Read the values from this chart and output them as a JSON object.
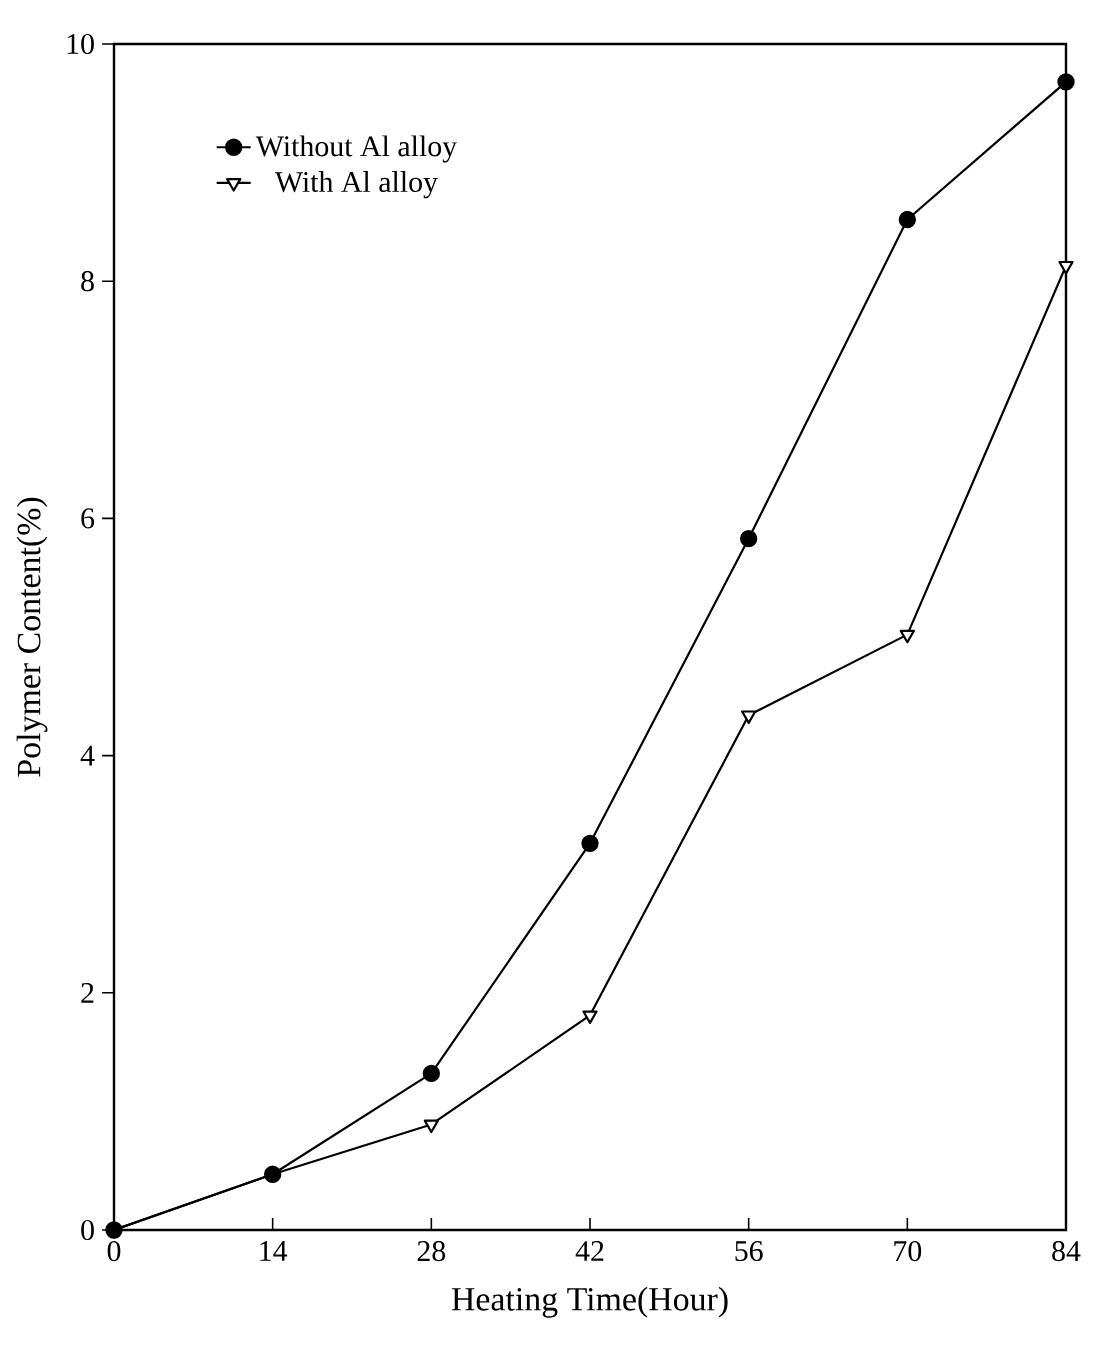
{
  "chart_data": {
    "type": "line",
    "xlabel": "Heating Time(Hour)",
    "ylabel": "Polymer Content(%)",
    "x": [
      0,
      14,
      28,
      42,
      56,
      70,
      84
    ],
    "series": [
      {
        "name": "Without Al alloy",
        "color": "#000000",
        "marker": "circle",
        "values": [
          0,
          0.47,
          1.32,
          3.26,
          5.83,
          8.52,
          9.68
        ]
      },
      {
        "name": "With Al alloy",
        "color": "#000000",
        "marker": "triangle",
        "values": [
          0,
          0.47,
          0.89,
          1.81,
          4.34,
          5.02,
          8.13
        ]
      }
    ],
    "xlim": [
      0,
      84
    ],
    "xticks": [
      0,
      14,
      28,
      42,
      56,
      70,
      84
    ],
    "ylim": [
      0,
      10
    ],
    "yticks": [
      0,
      2,
      4,
      6,
      8,
      10
    ],
    "grid": false,
    "legend": "top left",
    "line_style": "solid"
  }
}
